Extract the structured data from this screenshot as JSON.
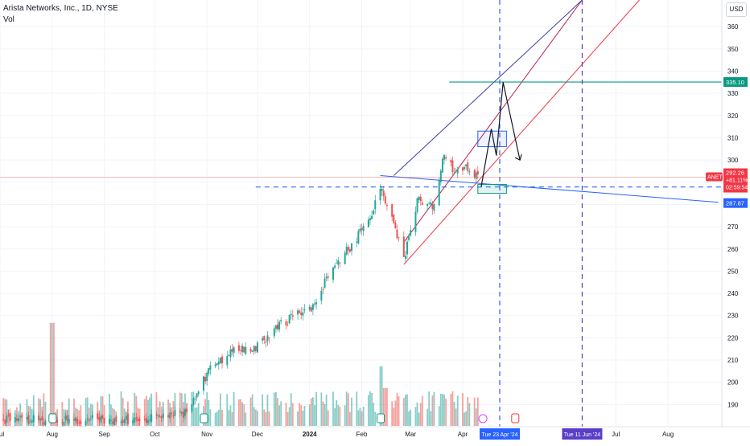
{
  "header": {
    "title": "Arista Networks, Inc., 1D, NYSE",
    "volume_label": "Vol",
    "currency": "USD"
  },
  "chart_data": {
    "type": "candlestick",
    "title": "Arista Networks, Inc., 1D, NYSE",
    "ylim": [
      180,
      372
    ],
    "y_ticks": [
      190,
      200,
      210,
      220,
      230,
      240,
      250,
      260,
      270,
      280,
      290,
      300,
      310,
      320,
      330,
      340,
      350,
      360
    ],
    "x_ticks": [
      {
        "label": "Jul",
        "date": "2023-07-01"
      },
      {
        "label": "Aug",
        "date": "2023-08-01"
      },
      {
        "label": "Sep",
        "date": "2023-09-01"
      },
      {
        "label": "Oct",
        "date": "2023-10-01"
      },
      {
        "label": "Nov",
        "date": "2023-11-01"
      },
      {
        "label": "Dec",
        "date": "2023-12-01"
      },
      {
        "label": "2024",
        "date": "2024-01-01"
      },
      {
        "label": "Feb",
        "date": "2024-02-01"
      },
      {
        "label": "Mar",
        "date": "2024-03-01"
      },
      {
        "label": "Apr",
        "date": "2024-04-01"
      },
      {
        "label": "Jul",
        "date": "2024-07-01"
      },
      {
        "label": "Aug",
        "date": "2024-08-01"
      }
    ],
    "x_range": [
      "2023-07-01",
      "2024-09-02"
    ],
    "grid": true,
    "up_color": "#26a69a",
    "down_color": "#ef5350",
    "price_series": [
      {
        "date": "2023-09-20",
        "close": 183
      },
      {
        "date": "2023-10-20",
        "close": 186
      },
      {
        "date": "2023-11-01",
        "close": 204
      },
      {
        "date": "2023-11-15",
        "close": 214
      },
      {
        "date": "2023-11-30",
        "close": 216
      },
      {
        "date": "2023-12-15",
        "close": 226
      },
      {
        "date": "2024-01-02",
        "close": 234
      },
      {
        "date": "2024-01-12",
        "close": 247
      },
      {
        "date": "2024-01-26",
        "close": 262
      },
      {
        "date": "2024-02-05",
        "close": 272
      },
      {
        "date": "2024-02-12",
        "close": 288
      },
      {
        "date": "2024-02-20",
        "close": 273
      },
      {
        "date": "2024-02-26",
        "close": 255
      },
      {
        "date": "2024-03-05",
        "close": 282
      },
      {
        "date": "2024-03-15",
        "close": 278
      },
      {
        "date": "2024-03-21",
        "close": 303
      },
      {
        "date": "2024-03-28",
        "close": 294
      },
      {
        "date": "2024-04-02",
        "close": 298
      },
      {
        "date": "2024-04-10",
        "close": 292
      }
    ],
    "volume_spikes": [
      {
        "date": "2023-08-01",
        "relative": 0.95
      },
      {
        "date": "2024-02-12",
        "relative": 0.55
      },
      {
        "date": "2024-02-15",
        "relative": 0.35
      }
    ],
    "annotations": {
      "resistance_level": {
        "value": 335.1,
        "label": "335.10",
        "color": "#089981"
      },
      "last_price": {
        "value": 292.26,
        "symbol": "ANET",
        "price_label": "292.26",
        "change_label": "+81.11%",
        "countdown": "02:59:54",
        "color": "#f23645"
      },
      "support_level": {
        "value": 287.87,
        "label": "287.87",
        "color": "#2962ff"
      },
      "vertical_markers": [
        {
          "date": "2024-04-23",
          "label": "Tue 23 Apr '24",
          "color": "#2962ff"
        },
        {
          "date": "2024-06-11",
          "label": "Tue 11 Jun '24",
          "color": "#5b3ec8"
        }
      ],
      "trend_lines": [
        {
          "from": {
            "date": "2024-02-26",
            "value": 253
          },
          "to": {
            "date": "2024-07-15",
            "value": 372
          },
          "color": "#f23645"
        },
        {
          "from": {
            "date": "2024-02-26",
            "value": 263
          },
          "to": {
            "date": "2024-06-11",
            "value": 372
          },
          "color": "#b71c4a"
        },
        {
          "from": {
            "date": "2024-02-20",
            "value": 293
          },
          "to": {
            "date": "2024-06-11",
            "value": 372
          },
          "color": "#3f3da8"
        },
        {
          "from": {
            "date": "2024-02-12",
            "value": 293
          },
          "to": {
            "date": "2024-08-31",
            "value": 281
          },
          "color": "#2962ff"
        }
      ]
    }
  }
}
